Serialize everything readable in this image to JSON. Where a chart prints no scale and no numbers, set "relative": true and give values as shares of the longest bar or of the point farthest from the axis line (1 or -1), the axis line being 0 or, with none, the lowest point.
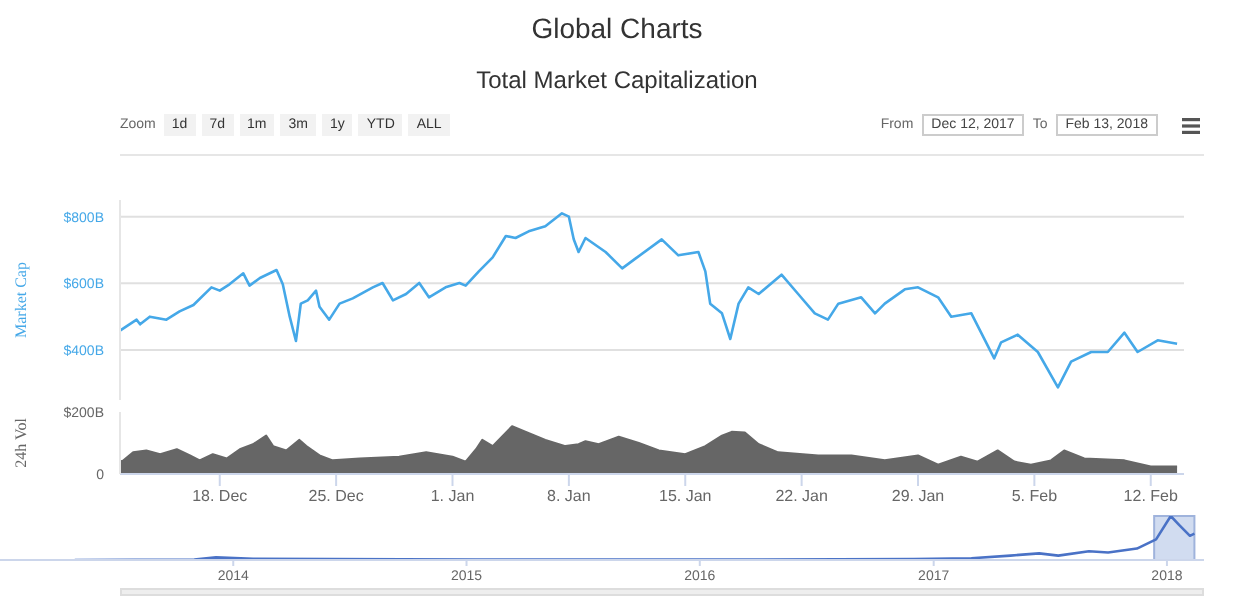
{
  "chart_data": [
    {
      "type": "line",
      "title": "Global Charts",
      "subtitle": "Total Market Capitalization",
      "ylabel": "Market Cap",
      "annotations": [
        "Zoom",
        "1d",
        "7d",
        "1m",
        "3m",
        "1y",
        "YTD",
        "ALL",
        "From",
        "Dec 12, 2017",
        "To",
        "Feb 13, 2018"
      ],
      "xlim": [
        "2017-12-12",
        "2018-02-14"
      ],
      "ylim": [
        250,
        850
      ],
      "yticks": [
        {
          "value": 400,
          "label": "$400B"
        },
        {
          "value": 600,
          "label": "$600B"
        },
        {
          "value": 800,
          "label": "$800B"
        }
      ],
      "grid": "y",
      "tick_labels": "y",
      "x": [
        "2017-12-12",
        "2017-12-13",
        "2017-12-13T05:00",
        "2017-12-13T19:00",
        "2017-12-14T19:00",
        "2017-12-15T14:00",
        "2017-12-16T10:00",
        "2017-12-17T12:00",
        "2017-12-18",
        "2017-12-18T14:00",
        "2017-12-19T10:00",
        "2017-12-19T19:00",
        "2017-12-20T10:00",
        "2017-12-21T10:00",
        "2017-12-21T19:00",
        "2017-12-22T05:00",
        "2017-12-22T14:00",
        "2017-12-22T21:00",
        "2017-12-23T07:00",
        "2017-12-23T19:00",
        "2017-12-24",
        "2017-12-24T14:00",
        "2017-12-25T05:00",
        "2017-12-26",
        "2017-12-27T05:00",
        "2017-12-27T19:00",
        "2017-12-28T10:00",
        "2017-12-29T05:00",
        "2017-12-30",
        "2017-12-30T14:00",
        "2017-12-31T14:00",
        "2018-01-01T10:00",
        "2018-01-01T19:00",
        "2018-01-02T14:00",
        "2018-01-03T10:00",
        "2018-01-04T05:00",
        "2018-01-04T19:00",
        "2018-01-05T14:00",
        "2018-01-06T14:00",
        "2018-01-07T14:00",
        "2018-01-08",
        "2018-01-08T07:00",
        "2018-01-08T14:00",
        "2018-01-09",
        "2018-01-10T05:00",
        "2018-01-11T05:00",
        "2018-01-12",
        "2018-01-13T14:00",
        "2018-01-14T14:00",
        "2018-01-15T19:00",
        "2018-01-16T05:00",
        "2018-01-16T12:00",
        "2018-01-17T05:00",
        "2018-01-17T17:00",
        "2018-01-18T05:00",
        "2018-01-18T19:00",
        "2018-01-19T10:00",
        "2018-01-20T19:00",
        "2018-01-21T19:00",
        "2018-01-22T19:00",
        "2018-01-23T14:00",
        "2018-01-24T05:00",
        "2018-01-25T14:00",
        "2018-01-26T10:00",
        "2018-01-27",
        "2018-01-28T05:00",
        "2018-01-29",
        "2018-01-30T05:00",
        "2018-01-31",
        "2018-02-01T05:00",
        "2018-02-02T14:00",
        "2018-02-03",
        "2018-02-04",
        "2018-02-05T05:00",
        "2018-02-06T10:00",
        "2018-02-07T05:00",
        "2018-02-08T10:00",
        "2018-02-09T10:00",
        "2018-02-10T10:00",
        "2018-02-11T05:00",
        "2018-02-12T10:00",
        "2018-02-13T14:00"
      ],
      "series": [
        {
          "color": "#45a8e8",
          "values": [
            458,
            491,
            477,
            500,
            491,
            516,
            535,
            588,
            578,
            597,
            630,
            593,
            616,
            640,
            597,
            500,
            427,
            539,
            549,
            578,
            530,
            491,
            539,
            555,
            588,
            601,
            549,
            568,
            601,
            558,
            588,
            601,
            593,
            636,
            678,
            742,
            736,
            756,
            771,
            810,
            800,
            732,
            694,
            736,
            694,
            645,
            674,
            732,
            684,
            694,
            636,
            539,
            510,
            433,
            539,
            588,
            568,
            626,
            568,
            510,
            491,
            539,
            558,
            510,
            539,
            582,
            588,
            558,
            500,
            510,
            375,
            423,
            446,
            394,
            288,
            365,
            394,
            394,
            452,
            394,
            429,
            419
          ]
        }
      ]
    },
    {
      "type": "area",
      "ylabel": "24h Vol",
      "xlim": [
        "2017-12-12",
        "2018-02-14"
      ],
      "ylim": [
        0,
        200
      ],
      "yticks": [
        {
          "value": 0,
          "label": "0"
        },
        {
          "value": 200,
          "label": "$200B"
        }
      ],
      "xticks": [
        {
          "value": "2017-12-18",
          "label": "18. Dec"
        },
        {
          "value": "2017-12-25",
          "label": "25. Dec"
        },
        {
          "value": "2018-01-01",
          "label": "1. Jan"
        },
        {
          "value": "2018-01-08",
          "label": "8. Jan"
        },
        {
          "value": "2018-01-15",
          "label": "15. Jan"
        },
        {
          "value": "2018-01-22",
          "label": "22. Jan"
        },
        {
          "value": "2018-01-29",
          "label": "29. Jan"
        },
        {
          "value": "2018-02-05",
          "label": "5. Feb"
        },
        {
          "value": "2018-02-12",
          "label": "12. Feb"
        }
      ],
      "x": [
        "2017-12-12",
        "2017-12-12T05:00",
        "2017-12-12T19:00",
        "2017-12-13T14:00",
        "2017-12-14T10:00",
        "2017-12-15T10:00",
        "2017-12-16T05:00",
        "2017-12-16T19:00",
        "2017-12-17T14:00",
        "2017-12-18T10:00",
        "2017-12-19T05:00",
        "2017-12-20",
        "2017-12-20T19:00",
        "2017-12-21T05:00",
        "2017-12-22",
        "2017-12-22T19:00",
        "2017-12-23T05:00",
        "2017-12-24",
        "2017-12-24T19:00",
        "2017-12-26T10:00",
        "2017-12-28T19:00",
        "2017-12-30T10:00",
        "2018-01-01",
        "2018-01-01T19:00",
        "2018-01-02T10:00",
        "2018-01-02T19:00",
        "2018-01-03T10:00",
        "2018-01-04T14:00",
        "2018-01-05T10:00",
        "2018-01-06T14:00",
        "2018-01-07T19:00",
        "2018-01-08T14:00",
        "2018-01-09",
        "2018-01-09T19:00",
        "2018-01-11",
        "2018-01-12T05:00",
        "2018-01-13T10:00",
        "2018-01-15",
        "2018-01-16T05:00",
        "2018-01-17T05:00",
        "2018-01-17T19:00",
        "2018-01-18T14:00",
        "2018-01-19T10:00",
        "2018-01-20T14:00",
        "2018-01-23",
        "2018-01-25",
        "2018-01-27",
        "2018-01-29",
        "2018-01-30T05:00",
        "2018-01-31T14:00",
        "2018-02-01T14:00",
        "2018-02-02T19:00",
        "2018-02-03T19:00",
        "2018-02-04T19:00",
        "2018-02-06",
        "2018-02-06T19:00",
        "2018-02-08",
        "2018-02-10T10:00",
        "2018-02-12",
        "2018-02-13T14:00"
      ],
      "series": [
        {
          "color": "#666666",
          "values": [
            40,
            44,
            70,
            76,
            64,
            80,
            60,
            44,
            64,
            50,
            80,
            96,
            124,
            90,
            76,
            110,
            90,
            60,
            44,
            50,
            56,
            70,
            56,
            40,
            80,
            110,
            90,
            154,
            136,
            110,
            90,
            96,
            106,
            96,
            120,
            100,
            76,
            64,
            90,
            124,
            136,
            134,
            96,
            70,
            60,
            60,
            44,
            60,
            30,
            56,
            40,
            76,
            40,
            30,
            44,
            76,
            50,
            44,
            24,
            24
          ]
        }
      ]
    },
    {
      "type": "line",
      "relative": true,
      "xlim": [
        "2013-01-01",
        "2018-02-28"
      ],
      "xticks": [
        "2014",
        "2015",
        "2016",
        "2017",
        "2018"
      ],
      "bands": [
        {
          "axis": "x",
          "from": "2017-12-12",
          "to": "2018-02-13",
          "color": "#c5d3ec"
        }
      ],
      "x": [
        "2013-04-28",
        "2013-11-01",
        "2013-12-05",
        "2014-02-01",
        "2014-06-01",
        "2015-01-15",
        "2016-01-01",
        "2016-12-01",
        "2017-03-01",
        "2017-05-01",
        "2017-06-15",
        "2017-07-15",
        "2017-09-01",
        "2017-10-01",
        "2017-11-15",
        "2017-12-15",
        "2018-01-07",
        "2018-01-20",
        "2018-02-06",
        "2018-02-13"
      ],
      "series": [
        {
          "color": "#4a72c6",
          "values": [
            0,
            0.01,
            0.06,
            0.03,
            0.02,
            0.01,
            0.01,
            0.02,
            0.04,
            0.1,
            0.15,
            0.1,
            0.2,
            0.17,
            0.26,
            0.47,
            1,
            0.8,
            0.55,
            0.6
          ]
        }
      ]
    }
  ]
}
